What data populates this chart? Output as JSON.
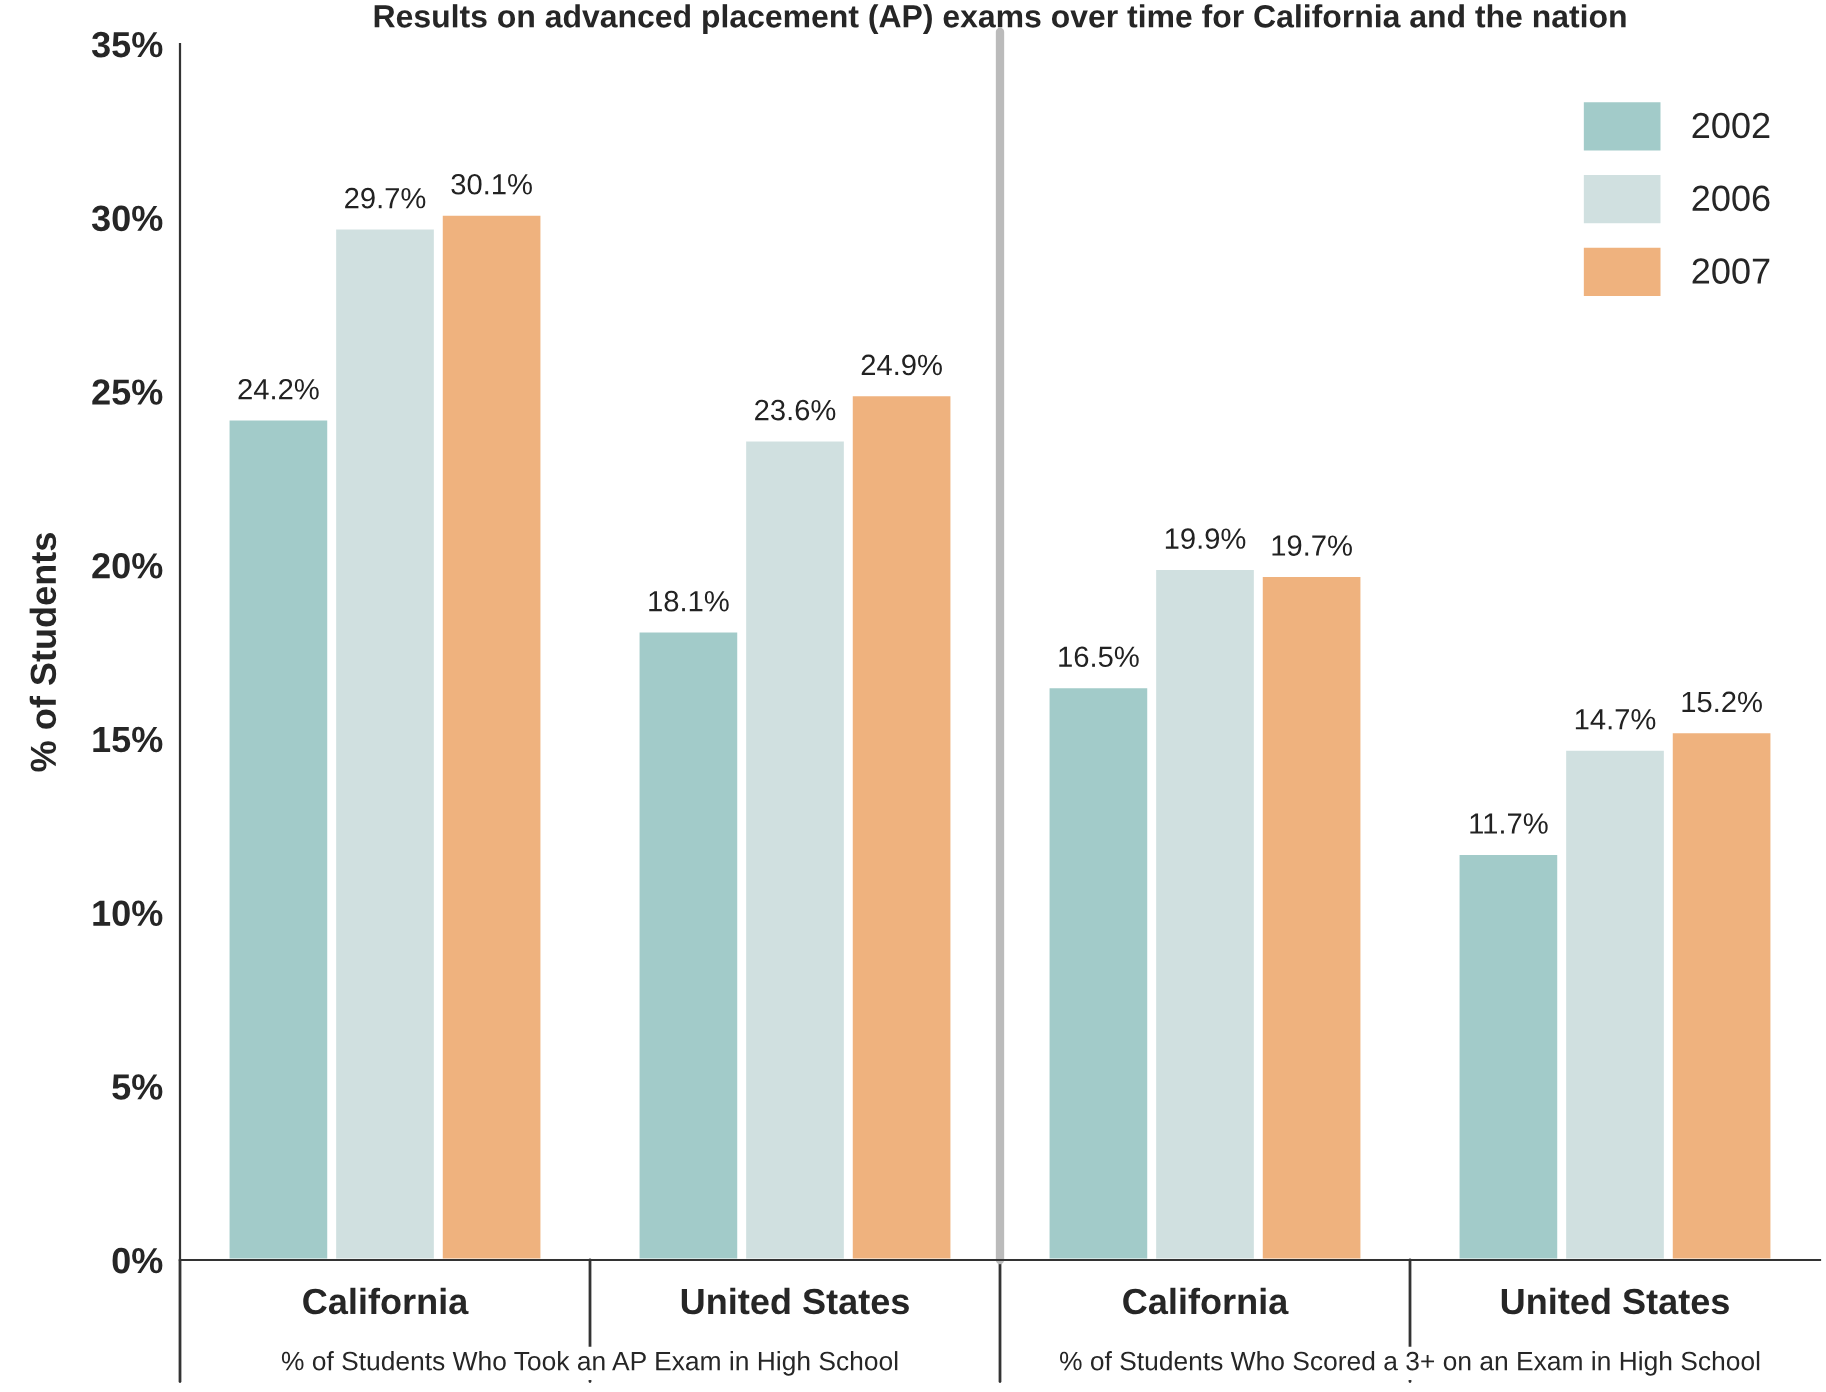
{
  "chart_data": {
    "type": "bar",
    "title": "Results on advanced placement (AP) exams over time for California and the nation",
    "ylabel": "% of Students",
    "categories": [
      "California",
      "United States",
      "California",
      "United States"
    ],
    "series": [
      {
        "name": "2002",
        "color": "#a2cbc9",
        "values": [
          24.2,
          18.1,
          16.5,
          11.7
        ]
      },
      {
        "name": "2006",
        "color": "#d0e0e0",
        "values": [
          29.7,
          23.6,
          19.9,
          14.7
        ]
      },
      {
        "name": "2007",
        "color": "#efb27e",
        "values": [
          30.1,
          24.9,
          19.7,
          15.2
        ]
      }
    ],
    "value_labels": [
      [
        "24.2%",
        "18.1%",
        "16.5%",
        "11.7%"
      ],
      [
        "29.7%",
        "23.6%",
        "19.9%",
        "14.7%"
      ],
      [
        "30.1%",
        "24.9%",
        "19.7%",
        "15.2%"
      ]
    ],
    "annotations": [
      "% of Students Who Took an AP Exam in High School",
      "% of Students Who Scored a 3+ on an Exam in High School"
    ],
    "ylim": [
      0,
      35
    ],
    "yticks": [
      {
        "value": 0,
        "label": "0%"
      },
      {
        "value": 5,
        "label": "5%"
      },
      {
        "value": 10,
        "label": "10%"
      },
      {
        "value": 15,
        "label": "15%"
      },
      {
        "value": 20,
        "label": "20%"
      },
      {
        "value": 25,
        "label": "25%"
      },
      {
        "value": 30,
        "label": "30%"
      },
      {
        "value": 35,
        "label": "35%"
      }
    ],
    "grid": false,
    "legend": "top right"
  }
}
